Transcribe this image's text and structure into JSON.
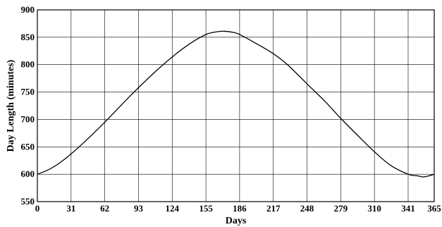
{
  "chart_data": {
    "type": "line",
    "xlabel": "Days",
    "ylabel": "Day Length (minutes)",
    "xlim": [
      0,
      365
    ],
    "ylim": [
      550,
      900
    ],
    "xticks": [
      0,
      31,
      62,
      93,
      124,
      155,
      186,
      217,
      248,
      279,
      310,
      341,
      365
    ],
    "yticks": [
      550,
      600,
      650,
      700,
      750,
      800,
      850,
      900
    ],
    "grid": true,
    "series": [
      {
        "color": "#000000",
        "x": [
          0,
          10,
          20,
          31,
          45,
          62,
          80,
          93,
          110,
          124,
          140,
          155,
          165,
          172,
          180,
          186,
          200,
          217,
          230,
          248,
          265,
          279,
          295,
          310,
          325,
          341,
          350,
          355,
          360,
          365
        ],
        "y": [
          600,
          608,
          620,
          637,
          662,
          695,
          732,
          758,
          790,
          814,
          838,
          855,
          860,
          861,
          859,
          855,
          840,
          820,
          800,
          765,
          732,
          702,
          670,
          641,
          616,
          600,
          597,
          595,
          597,
          600
        ]
      }
    ]
  }
}
